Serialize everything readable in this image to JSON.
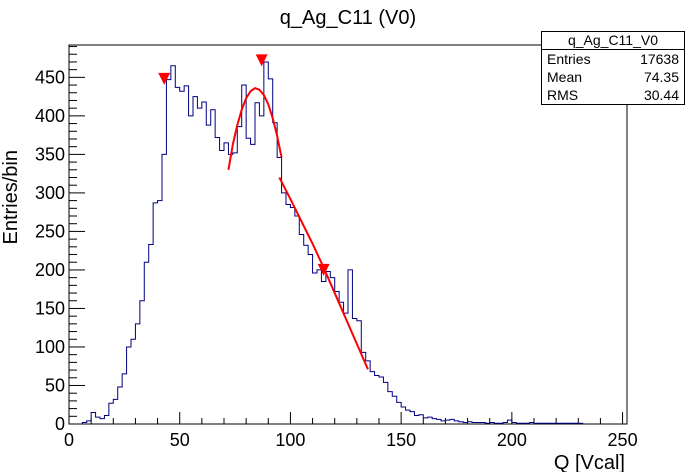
{
  "chart_data": {
    "type": "histogram",
    "title": "q_Ag_C11 (V0)",
    "xlabel": "Q [Vcal]",
    "ylabel": "Entries/bin",
    "xlim": [
      0,
      252
    ],
    "ylim": [
      0,
      492
    ],
    "x_ticks": [
      "0",
      "50",
      "100",
      "150",
      "200",
      "250"
    ],
    "y_ticks": [
      "0",
      "50",
      "100",
      "150",
      "200",
      "250",
      "300",
      "350",
      "400",
      "450"
    ],
    "bin_width": 2,
    "bins": [
      [
        6,
        2
      ],
      [
        8,
        4
      ],
      [
        10,
        15
      ],
      [
        12,
        9
      ],
      [
        14,
        7
      ],
      [
        16,
        11
      ],
      [
        18,
        27
      ],
      [
        20,
        32
      ],
      [
        22,
        48
      ],
      [
        24,
        65
      ],
      [
        26,
        100
      ],
      [
        28,
        110
      ],
      [
        30,
        130
      ],
      [
        32,
        160
      ],
      [
        34,
        210
      ],
      [
        36,
        233
      ],
      [
        38,
        287
      ],
      [
        40,
        290
      ],
      [
        42,
        350
      ],
      [
        44,
        447
      ],
      [
        46,
        465
      ],
      [
        48,
        437
      ],
      [
        50,
        432
      ],
      [
        52,
        439
      ],
      [
        54,
        400
      ],
      [
        56,
        425
      ],
      [
        58,
        410
      ],
      [
        60,
        418
      ],
      [
        62,
        388
      ],
      [
        64,
        408
      ],
      [
        66,
        372
      ],
      [
        68,
        355
      ],
      [
        70,
        365
      ],
      [
        72,
        350
      ],
      [
        74,
        352
      ],
      [
        76,
        386
      ],
      [
        78,
        440
      ],
      [
        80,
        371
      ],
      [
        82,
        363
      ],
      [
        84,
        417
      ],
      [
        86,
        400
      ],
      [
        88,
        470
      ],
      [
        90,
        448
      ],
      [
        92,
        391
      ],
      [
        94,
        346
      ],
      [
        96,
        300
      ],
      [
        98,
        285
      ],
      [
        100,
        281
      ],
      [
        102,
        270
      ],
      [
        104,
        246
      ],
      [
        106,
        232
      ],
      [
        108,
        220
      ],
      [
        110,
        196
      ],
      [
        112,
        200
      ],
      [
        114,
        185
      ],
      [
        116,
        198
      ],
      [
        118,
        190
      ],
      [
        120,
        172
      ],
      [
        122,
        158
      ],
      [
        124,
        144
      ],
      [
        126,
        200
      ],
      [
        128,
        137
      ],
      [
        130,
        134
      ],
      [
        132,
        93
      ],
      [
        134,
        82
      ],
      [
        136,
        68
      ],
      [
        138,
        63
      ],
      [
        140,
        61
      ],
      [
        142,
        54
      ],
      [
        144,
        42
      ],
      [
        146,
        36
      ],
      [
        148,
        28
      ],
      [
        150,
        22
      ],
      [
        152,
        18
      ],
      [
        154,
        16
      ],
      [
        156,
        11
      ],
      [
        158,
        12
      ],
      [
        160,
        8
      ],
      [
        162,
        9
      ],
      [
        164,
        7
      ],
      [
        166,
        6
      ],
      [
        168,
        4
      ],
      [
        170,
        5
      ],
      [
        172,
        6
      ],
      [
        174,
        4
      ],
      [
        176,
        3
      ],
      [
        178,
        2
      ],
      [
        180,
        3
      ],
      [
        182,
        2
      ],
      [
        184,
        2
      ],
      [
        186,
        2
      ],
      [
        188,
        1
      ],
      [
        190,
        2
      ],
      [
        192,
        1
      ],
      [
        194,
        1
      ],
      [
        196,
        2
      ],
      [
        198,
        5
      ],
      [
        200,
        2
      ],
      [
        202,
        1
      ],
      [
        204,
        1
      ],
      [
        206,
        1
      ],
      [
        208,
        2
      ],
      [
        210,
        1
      ],
      [
        212,
        1
      ],
      [
        214,
        1
      ],
      [
        216,
        1
      ],
      [
        218,
        1
      ],
      [
        220,
        1
      ],
      [
        222,
        1
      ],
      [
        224,
        1
      ],
      [
        226,
        1
      ],
      [
        228,
        1
      ],
      [
        230,
        1
      ]
    ],
    "fits": [
      {
        "x": [
          72,
          74,
          76,
          78,
          80,
          82,
          84,
          86,
          88,
          90,
          92,
          94,
          96
        ],
        "y": [
          330,
          363,
          388,
          408,
          423,
          432,
          436,
          434,
          427,
          415,
          397,
          374,
          346
        ]
      },
      {
        "x": [
          95,
          100,
          105,
          110,
          115,
          120,
          125,
          130,
          135
        ],
        "y": [
          320,
          292,
          263,
          234,
          203,
          170,
          137,
          104,
          71
        ]
      }
    ],
    "peak_markers": [
      {
        "x": 43,
        "y": 448
      },
      {
        "x": 87,
        "y": 472
      },
      {
        "x": 115,
        "y": 200
      }
    ],
    "colors": {
      "histogram": "#000080",
      "fit": "#ff0000",
      "marker": "#ff0000"
    }
  },
  "stats": {
    "title": "q_Ag_C11_V0",
    "rows": [
      {
        "label": "Entries",
        "value": "17638"
      },
      {
        "label": "Mean",
        "value": "74.35"
      },
      {
        "label": "RMS",
        "value": "30.44"
      }
    ]
  }
}
